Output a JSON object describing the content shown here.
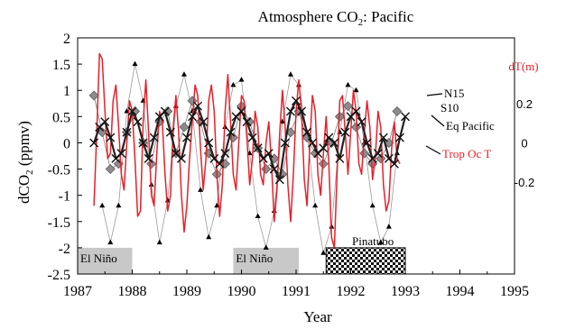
{
  "chart_data": {
    "type": "line",
    "title_main": "Atmosphere CO",
    "title_sub": "2",
    "title_rest": ": Pacific",
    "xlabel": "Year",
    "ylabel_main": "dCO",
    "ylabel_sub": "2",
    "ylabel_rest": " (ppmv)",
    "y2label": "dT(m)",
    "xlim": [
      1987,
      1995
    ],
    "ylim": [
      -2.5,
      2
    ],
    "x_ticks": [
      "1987",
      "1988",
      "1989",
      "1990",
      "1991",
      "1992",
      "1993",
      "1994",
      "1995"
    ],
    "y_ticks": [
      "2",
      "1.5",
      "1",
      "0.5",
      "0",
      "-0.5",
      "-1",
      "-1.5",
      "-2",
      "-2.5"
    ],
    "y2_ticks": [
      {
        "label": "0.2",
        "at": 0.75
      },
      {
        "label": "0",
        "at": 0.0
      },
      {
        "label": "-0.2",
        "at": -0.75
      }
    ],
    "grid": false,
    "colors": {
      "trop_oc_t": "#e8202a",
      "eq_pacific": "#222222",
      "s10": "#8a8a8a",
      "n15": "#999999",
      "box": "#c8c8c8"
    },
    "annotations": {
      "n15": "N15",
      "s10": "S10",
      "eq": "Eq Pacific",
      "trop": "Trop Oc T"
    },
    "shaded_periods": [
      {
        "label": "El Niño",
        "x0": 1987.0,
        "x1": 1988.0,
        "style": "gray"
      },
      {
        "label": "El Niño",
        "x0": 1989.85,
        "x1": 1991.05,
        "style": "gray"
      },
      {
        "label": "Pinatubo",
        "x0": 1991.55,
        "x1": 1993.0,
        "style": "checker"
      }
    ],
    "series": [
      {
        "name": "N15",
        "marker": "triangle",
        "x": [
          1987.45,
          1987.6,
          1987.75,
          1987.9,
          1988.05,
          1988.2,
          1988.35,
          1988.5,
          1988.65,
          1988.8,
          1988.95,
          1989.1,
          1989.25,
          1989.4,
          1989.55,
          1989.7,
          1989.85,
          1990.0,
          1990.15,
          1990.3,
          1990.45,
          1990.6,
          1990.75,
          1990.9,
          1991.05,
          1991.2,
          1991.35,
          1991.5,
          1991.65,
          1991.8,
          1991.95,
          1992.1,
          1992.25,
          1992.4,
          1992.55,
          1992.7,
          1992.85
        ],
        "y": [
          -1.2,
          -1.9,
          -1.2,
          0.6,
          1.5,
          0.8,
          -0.8,
          -1.9,
          -1.1,
          0.7,
          1.3,
          0.6,
          -0.9,
          -1.8,
          -1.2,
          0.3,
          1.1,
          1.2,
          -0.2,
          -1.4,
          -2.0,
          -1.3,
          0.4,
          1.3,
          1.1,
          0.2,
          -1.2,
          -2.1,
          -1.6,
          0.2,
          1.1,
          1.0,
          0.0,
          -1.2,
          -1.9,
          -1.6,
          -0.2
        ]
      },
      {
        "name": "S10",
        "marker": "diamond",
        "x": [
          1987.3,
          1987.45,
          1987.6,
          1987.75,
          1987.9,
          1988.05,
          1988.2,
          1988.35,
          1988.5,
          1988.65,
          1988.8,
          1988.95,
          1989.1,
          1989.25,
          1989.4,
          1989.55,
          1989.7,
          1989.85,
          1990.0,
          1990.15,
          1990.3,
          1990.45,
          1990.6,
          1990.75,
          1990.9,
          1991.05,
          1991.2,
          1991.35,
          1991.5,
          1991.65,
          1991.8,
          1991.95,
          1992.1,
          1992.25,
          1992.4,
          1992.55,
          1992.7,
          1992.85
        ],
        "y": [
          0.9,
          0.2,
          -0.5,
          -0.4,
          0.2,
          0.6,
          0.0,
          -0.4,
          0.4,
          0.6,
          -0.2,
          0.3,
          0.8,
          0.4,
          -0.2,
          -0.6,
          -0.4,
          0.1,
          0.7,
          0.4,
          -0.1,
          -0.5,
          -0.3,
          -0.6,
          0.2,
          0.6,
          0.1,
          -0.2,
          -0.4,
          0.0,
          0.5,
          0.7,
          0.3,
          -0.2,
          -0.4,
          -0.3,
          0.0,
          0.6
        ]
      },
      {
        "name": "Eq Pacific",
        "marker": "x",
        "x": [
          1987.3,
          1987.4,
          1987.5,
          1987.6,
          1987.7,
          1987.8,
          1987.9,
          1988.0,
          1988.1,
          1988.2,
          1988.3,
          1988.4,
          1988.5,
          1988.6,
          1988.7,
          1988.8,
          1988.9,
          1989.0,
          1989.1,
          1989.2,
          1989.3,
          1989.4,
          1989.5,
          1989.6,
          1989.7,
          1989.8,
          1989.9,
          1990.0,
          1990.1,
          1990.2,
          1990.3,
          1990.4,
          1990.5,
          1990.6,
          1990.7,
          1990.8,
          1990.9,
          1991.0,
          1991.1,
          1991.2,
          1991.3,
          1991.4,
          1991.5,
          1991.6,
          1991.7,
          1991.8,
          1991.9,
          1992.0,
          1992.1,
          1992.2,
          1992.3,
          1992.4,
          1992.5,
          1992.6,
          1992.7,
          1992.8,
          1992.9,
          1993.0
        ],
        "y": [
          0.0,
          0.3,
          0.4,
          0.1,
          -0.3,
          -0.2,
          0.2,
          0.6,
          0.4,
          0.0,
          -0.3,
          0.1,
          0.5,
          0.6,
          0.2,
          -0.2,
          -0.3,
          0.1,
          0.5,
          0.7,
          0.4,
          0.0,
          -0.3,
          -0.4,
          -0.2,
          0.2,
          0.5,
          0.6,
          0.4,
          0.1,
          -0.1,
          -0.3,
          -0.2,
          -0.5,
          -0.7,
          0.0,
          0.6,
          0.8,
          0.6,
          0.2,
          0.0,
          -0.2,
          -0.1,
          0.1,
          0.0,
          -0.3,
          0.2,
          0.5,
          0.6,
          0.4,
          0.0,
          -0.3,
          -0.2,
          0.1,
          -0.3,
          -0.4,
          0.1,
          0.5
        ]
      },
      {
        "name": "Trop Oc T",
        "marker": "none",
        "x": [
          1987.3,
          1987.35,
          1987.4,
          1987.45,
          1987.5,
          1987.55,
          1987.6,
          1987.65,
          1987.7,
          1987.75,
          1987.8,
          1987.85,
          1987.9,
          1987.95,
          1988.0,
          1988.05,
          1988.1,
          1988.15,
          1988.2,
          1988.25,
          1988.3,
          1988.35,
          1988.4,
          1988.45,
          1988.5,
          1988.55,
          1988.6,
          1988.65,
          1988.7,
          1988.75,
          1988.8,
          1988.85,
          1988.9,
          1988.95,
          1989.0,
          1989.05,
          1989.1,
          1989.15,
          1989.2,
          1989.25,
          1989.3,
          1989.35,
          1989.4,
          1989.45,
          1989.5,
          1989.55,
          1989.6,
          1989.65,
          1989.7,
          1989.75,
          1989.8,
          1989.85,
          1989.9,
          1989.95,
          1990.0,
          1990.05,
          1990.1,
          1990.15,
          1990.2,
          1990.25,
          1990.3,
          1990.35,
          1990.4,
          1990.45,
          1990.5,
          1990.55,
          1990.6,
          1990.65,
          1990.7,
          1990.75,
          1990.8,
          1990.85,
          1990.9,
          1990.95,
          1991.0,
          1991.05,
          1991.1,
          1991.15,
          1991.2,
          1991.25,
          1991.3,
          1991.35,
          1991.4,
          1991.45,
          1991.5,
          1991.55,
          1991.6,
          1991.65,
          1991.7,
          1991.75,
          1991.8,
          1991.85,
          1991.9,
          1991.95,
          1992.0,
          1992.05,
          1992.1,
          1992.15,
          1992.2,
          1992.25,
          1992.3,
          1992.35,
          1992.4,
          1992.45,
          1992.5,
          1992.55,
          1992.6,
          1992.65,
          1992.7,
          1992.75,
          1992.8,
          1992.85,
          1992.9
        ],
        "y": [
          -1.2,
          0.2,
          1.7,
          1.6,
          0.6,
          -0.3,
          -0.2,
          0.8,
          1.1,
          0.3,
          -0.6,
          -0.9,
          0.0,
          0.8,
          0.6,
          -0.3,
          -1.4,
          -1.3,
          0.4,
          1.2,
          0.2,
          -1.0,
          -1.2,
          -0.2,
          0.6,
          0.4,
          -0.6,
          -1.3,
          -1.0,
          0.3,
          0.9,
          0.2,
          -1.0,
          -1.7,
          -1.2,
          -0.3,
          0.4,
          1.1,
          0.9,
          -0.1,
          -0.9,
          -0.3,
          0.8,
          1.1,
          0.6,
          -0.6,
          -1.4,
          -0.8,
          0.6,
          1.3,
          0.4,
          -0.6,
          -0.9,
          0.0,
          0.9,
          0.8,
          0.1,
          -0.8,
          -0.3,
          0.6,
          0.3,
          -0.6,
          -0.8,
          0.0,
          0.4,
          -0.4,
          -1.5,
          -0.9,
          0.2,
          1.0,
          0.3,
          -0.8,
          -1.5,
          -0.6,
          0.6,
          1.2,
          0.6,
          -0.7,
          -1.2,
          -0.1,
          0.9,
          0.6,
          -0.6,
          -1.0,
          -0.2,
          0.5,
          -0.4,
          -1.8,
          -2.0,
          -0.6,
          0.8,
          0.9,
          0.2,
          -0.6,
          0.2,
          1.0,
          0.6,
          -0.4,
          -0.6,
          0.2,
          0.8,
          0.3,
          -0.7,
          -0.3,
          0.6,
          0.3,
          -0.8,
          -1.3,
          -1.1,
          -0.1,
          0.4,
          -0.3,
          -0.4
        ]
      }
    ]
  }
}
